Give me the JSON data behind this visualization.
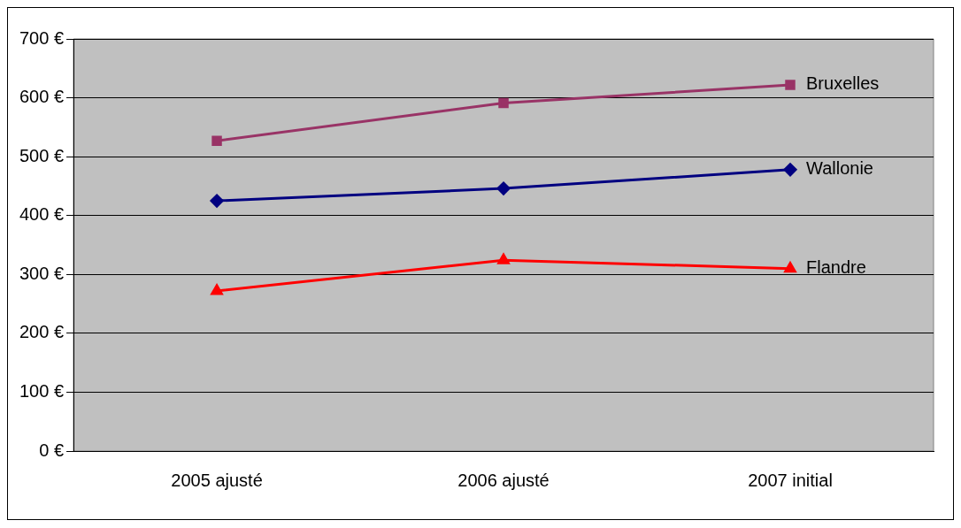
{
  "chart_data": {
    "type": "line",
    "categories": [
      "2005 ajusté",
      "2006 ajusté",
      "2007 initial"
    ],
    "series": [
      {
        "name": "Bruxelles",
        "color": "#993366",
        "marker": "square",
        "values": [
          527,
          591,
          622
        ]
      },
      {
        "name": "Wallonie",
        "color": "#000080",
        "marker": "diamond",
        "values": [
          425,
          446,
          478
        ]
      },
      {
        "name": "Flandre",
        "color": "#ff0000",
        "marker": "triangle",
        "values": [
          272,
          324,
          310
        ]
      }
    ],
    "ylim": [
      0,
      700
    ],
    "yticks": [
      {
        "value": 0,
        "label": "0 €"
      },
      {
        "value": 100,
        "label": "100 €"
      },
      {
        "value": 200,
        "label": "200 €"
      },
      {
        "value": 300,
        "label": "300 €"
      },
      {
        "value": 400,
        "label": "400 €"
      },
      {
        "value": 500,
        "label": "500 €"
      },
      {
        "value": 600,
        "label": "600 €"
      },
      {
        "value": 700,
        "label": "700 €"
      }
    ],
    "grid": "y",
    "legend": false
  }
}
